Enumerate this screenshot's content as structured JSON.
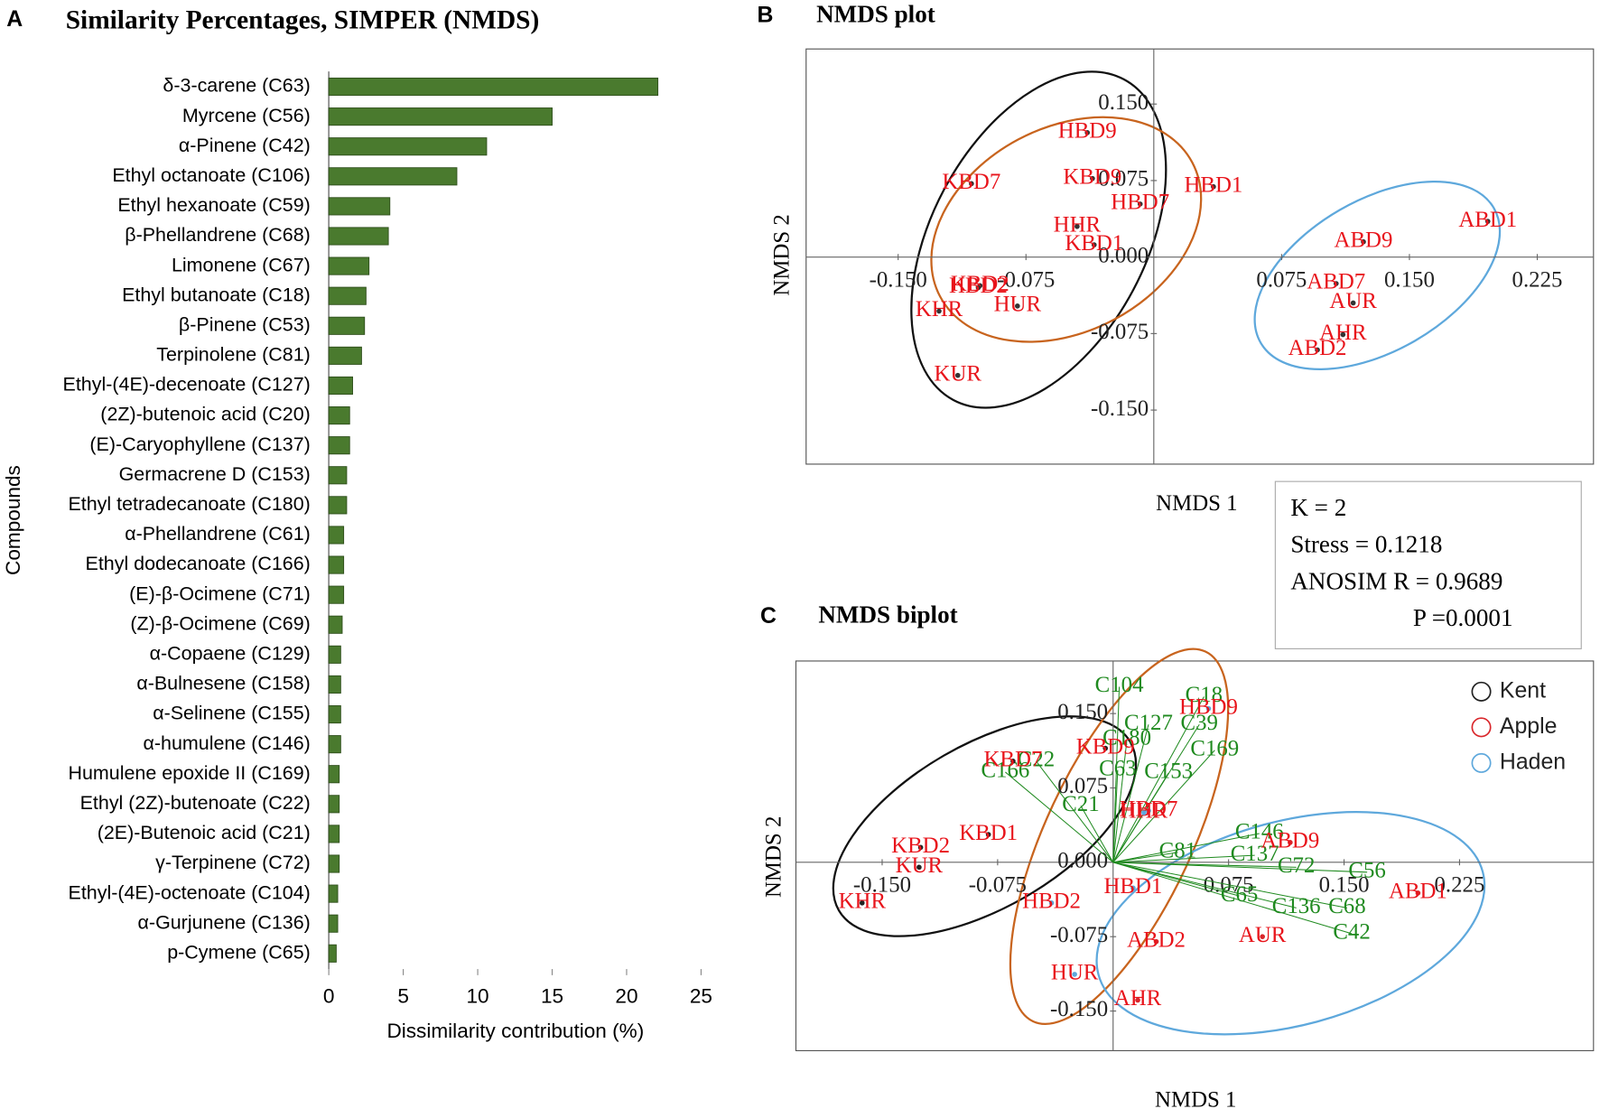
{
  "chart_data": [
    {
      "type": "bar",
      "orientation": "horizontal",
      "panel": "A",
      "title": "Similarity Percentages, SIMPER (NMDS)",
      "x_label": "Dissimilarity contribution (%)",
      "y_label": "Compounds",
      "color": "#4a7a2e",
      "categories": [
        "δ-3-carene (C63)",
        "Myrcene (C56)",
        "α-Pinene (C42)",
        "Ethyl octanoate (C106)",
        "Ethyl hexanoate (C59)",
        "β-Phellandrene (C68)",
        "Limonene (C67)",
        "Ethyl butanoate (C18)",
        "β-Pinene (C53)",
        "Terpinolene (C81)",
        "Ethyl-(4E)-decenoate (C127)",
        "(2Z)-butenoic acid (C20)",
        "(E)-Caryophyllene (C137)",
        "Germacrene D (C153)",
        "Ethyl tetradecanoate (C180)",
        "α-Phellandrene (C61)",
        "Ethyl dodecanoate (C166)",
        "(E)-β-Ocimene (C71)",
        "(Z)-β-Ocimene (C69)",
        "α-Copaene (C129)",
        "α-Bulnesene (C158)",
        "α-Selinene (C155)",
        "α-humulene (C146)",
        "Humulene epoxide II (C169)",
        "Ethyl (2Z)-butenoate (C22)",
        "(2E)-Butenoic acid (C21)",
        "γ-Terpinene (C72)",
        "Ethyl-(4E)-octenoate (C104)",
        "α-Gurjunene (C136)",
        "p-Cymene (C65)"
      ],
      "values": [
        22.1,
        15.0,
        10.6,
        8.6,
        4.1,
        4.0,
        2.7,
        2.5,
        2.4,
        2.2,
        1.6,
        1.4,
        1.4,
        1.2,
        1.2,
        1.0,
        1.0,
        1.0,
        0.9,
        0.8,
        0.8,
        0.8,
        0.8,
        0.7,
        0.7,
        0.7,
        0.7,
        0.6,
        0.6,
        0.5
      ],
      "xlim": [
        0,
        25
      ],
      "xticks": [
        0,
        5,
        10,
        15,
        20,
        25
      ]
    },
    {
      "type": "scatter",
      "panel": "B",
      "title": "NMDS plot",
      "x_label": "NMDS 1",
      "y_label": "NMDS 2",
      "xlim": [
        -0.204,
        0.258
      ],
      "ylim": [
        -0.203,
        0.204
      ],
      "xticks": [
        {
          "value": -0.15,
          "label": "-0.150"
        },
        {
          "value": -0.075,
          "label": "-0.075"
        },
        {
          "value": 0.075,
          "label": "0.075"
        },
        {
          "value": 0.15,
          "label": "0.150"
        },
        {
          "value": 0.225,
          "label": "0.225"
        }
      ],
      "yticks": [
        {
          "value": -0.15,
          "label": "-0.150"
        },
        {
          "value": -0.075,
          "label": "-0.075"
        },
        {
          "value": 0,
          "label": "0.000"
        },
        {
          "value": 0.075,
          "label": "0.075"
        },
        {
          "value": 0.15,
          "label": "0.150"
        }
      ],
      "series": [
        {
          "color": "#e8141b",
          "labels": [
            "KBD7",
            "KBD9",
            "HBD9",
            "HBD1",
            "HBD7",
            "HHR",
            "KBD1",
            "KBD2",
            "HBD2",
            "KHR",
            "HUR",
            "KUR",
            "ABD1",
            "ABD9",
            "ABD7",
            "AUR",
            "AHR",
            "ABD2"
          ],
          "x": [
            -0.107,
            -0.036,
            -0.039,
            0.035,
            -0.008,
            -0.045,
            -0.035,
            -0.102,
            -0.103,
            -0.126,
            -0.08,
            -0.115,
            0.196,
            0.123,
            0.107,
            0.117,
            0.111,
            0.096
          ],
          "values": [
            0.072,
            0.077,
            0.122,
            0.069,
            0.052,
            0.03,
            0.012,
            -0.028,
            -0.03,
            -0.053,
            -0.048,
            -0.116,
            0.035,
            0.015,
            -0.026,
            -0.045,
            -0.076,
            -0.091
          ]
        }
      ],
      "stats": [
        "K = 2",
        "Stress = 0.1218",
        "ANOSIM  R = 0.9689",
        "P =0.0001"
      ]
    },
    {
      "type": "biplot",
      "panel": "C",
      "title": "NMDS biplot",
      "x_label": "NMDS 1",
      "y_label": "NMDS 2",
      "xlim": [
        -0.206,
        0.312
      ],
      "ylim": [
        -0.19,
        0.203
      ],
      "legend": "upper right",
      "label_color": "#e8141b",
      "xticks": [
        {
          "value": -0.15,
          "label": "-0.150"
        },
        {
          "value": -0.075,
          "label": "-0.075"
        },
        {
          "value": 0.075,
          "label": "0.075"
        },
        {
          "value": 0.15,
          "label": "0.150"
        },
        {
          "value": 0.225,
          "label": "0.225"
        }
      ],
      "yticks": [
        {
          "value": -0.15,
          "label": "-0.150"
        },
        {
          "value": -0.075,
          "label": "-0.075"
        },
        {
          "value": 0,
          "label": "0.000"
        },
        {
          "value": 0.075,
          "label": "0.075"
        },
        {
          "value": 0.15,
          "label": "0.150"
        }
      ],
      "series": [
        {
          "name": "Kent",
          "color": "#222222",
          "labels": [
            "KBD9",
            "KBD7",
            "KBD1",
            "KBD2",
            "KUR",
            "KHR"
          ],
          "x": [
            -0.005,
            -0.065,
            -0.081,
            -0.125,
            -0.126,
            -0.163
          ],
          "values": [
            0.115,
            0.102,
            0.028,
            0.015,
            -0.005,
            -0.041
          ]
        },
        {
          "name": "Apple",
          "color": "#d9262b",
          "labels": [
            "ABD9",
            "ABD1",
            "AUR",
            "ABD2",
            "AHR"
          ],
          "x": [
            0.115,
            0.198,
            0.097,
            0.028,
            0.016
          ],
          "values": [
            0.02,
            -0.031,
            -0.075,
            -0.08,
            -0.139
          ]
        },
        {
          "name": "Haden",
          "color": "#5ea8dc",
          "labels": [
            "HBD9",
            "HBD7",
            "HHR",
            "HBD2",
            "HBD1",
            "HUR"
          ],
          "x": [
            0.062,
            0.023,
            0.02,
            -0.04,
            0.013,
            -0.025
          ],
          "values": [
            0.155,
            0.052,
            0.05,
            -0.041,
            -0.026,
            -0.113
          ]
        }
      ],
      "vectors": {
        "color": "#1f8a1f",
        "labels": [
          "C104",
          "C18",
          "C39",
          "C127",
          "C180",
          "C169",
          "C153",
          "C63",
          "C22",
          "C166",
          "C21",
          "C81",
          "C146",
          "C137",
          "C72",
          "C56",
          "C65",
          "C136",
          "C68",
          "C42"
        ],
        "x": [
          0.004,
          0.059,
          0.056,
          0.023,
          0.009,
          0.066,
          0.036,
          0.003,
          -0.05,
          -0.07,
          -0.021,
          0.042,
          0.095,
          0.092,
          0.119,
          0.165,
          0.082,
          0.119,
          0.152,
          0.155
        ],
        "values": [
          0.177,
          0.167,
          0.139,
          0.139,
          0.124,
          0.113,
          0.09,
          0.093,
          0.102,
          0.091,
          0.057,
          0.01,
          0.029,
          0.007,
          -0.005,
          -0.01,
          -0.034,
          -0.046,
          -0.046,
          -0.072
        ]
      }
    }
  ]
}
